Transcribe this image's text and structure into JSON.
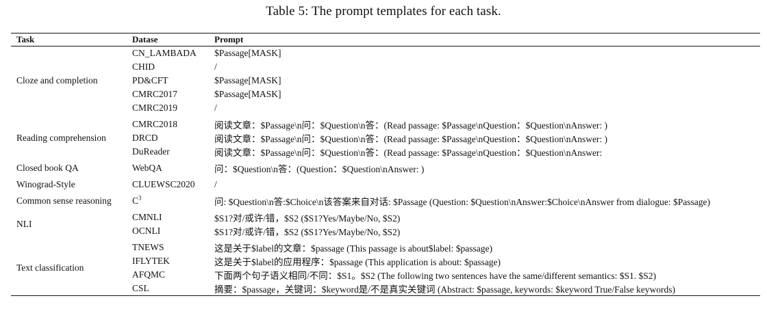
{
  "caption": "Table 5: The prompt templates for each task.",
  "headers": {
    "task": "Task",
    "dataset": "Datase",
    "prompt": "Prompt"
  },
  "groups": [
    {
      "task": "Cloze and completion",
      "rows": [
        {
          "dataset": "CN_LAMBADA",
          "prompt": "$Passage[MASK]"
        },
        {
          "dataset": "CHID",
          "prompt": "/"
        },
        {
          "dataset": "PD&CFT",
          "prompt": "$Passage[MASK]"
        },
        {
          "dataset": "CMRC2017",
          "prompt": "$Passage[MASK]"
        },
        {
          "dataset": "CMRC2019",
          "prompt": "/"
        }
      ]
    },
    {
      "task": "Reading comprehension",
      "rows": [
        {
          "dataset": "CMRC2018",
          "prompt": "阅读文章：$Passage\\n问：$Question\\n答：(Read passage: $Passage\\nQuestion：$Question\\nAnswer: )"
        },
        {
          "dataset": "DRCD",
          "prompt": "阅读文章：$Passage\\n问：$Question\\n答：(Read passage: $Passage\\nQuestion：$Question\\nAnswer: )"
        },
        {
          "dataset": "DuReader",
          "prompt": "阅读文章：$Passage\\n问：$Question\\n答：(Read passage: $Passage\\nQuestion：$Question\\nAnswer:"
        }
      ]
    },
    {
      "task": "Closed book QA",
      "rows": [
        {
          "dataset": "WebQA",
          "prompt": "问：$Question\\n答：(Question：$Question\\nAnswer: )"
        }
      ]
    },
    {
      "task": "Winograd-Style",
      "rows": [
        {
          "dataset": "CLUEWSC2020",
          "prompt": "/"
        }
      ]
    },
    {
      "task": "Common sense reasoning",
      "rows": [
        {
          "dataset": "C",
          "dataset_sup": "3",
          "prompt": "问: $Question\\n答:$Choice\\n该答案来自对话: $Passage (Question: $Question\\nAnswer:$Choice\\nAnswer from dialogue: $Passage)"
        }
      ]
    },
    {
      "task": "NLI",
      "rows": [
        {
          "dataset": "CMNLI",
          "prompt": "$S1?对/或许/错，$S2 ($S1?Yes/Maybe/No, $S2)"
        },
        {
          "dataset": "OCNLI",
          "prompt": "$S1?对/或许/错，$S2 ($S1?Yes/Maybe/No, $S2)"
        }
      ]
    },
    {
      "task": "Text classification",
      "rows": [
        {
          "dataset": "TNEWS",
          "prompt": "这是关于$label的文章：$passage (This passage is about$label: $passage)"
        },
        {
          "dataset": "IFLYTEK",
          "prompt": "这是关于$label的应用程序：$passage (This application is about: $passage)"
        },
        {
          "dataset": "AFQMC",
          "prompt": "下面两个句子语义相同/不同：$S1。$S2 (The following two sentences have the same/different semantics: $S1. $S2)"
        },
        {
          "dataset": "CSL",
          "prompt": "摘要：$passage，关键词：$keyword是/不是真实关键词 (Abstract: $passage, keywords: $keyword True/False keywords)"
        }
      ]
    }
  ]
}
